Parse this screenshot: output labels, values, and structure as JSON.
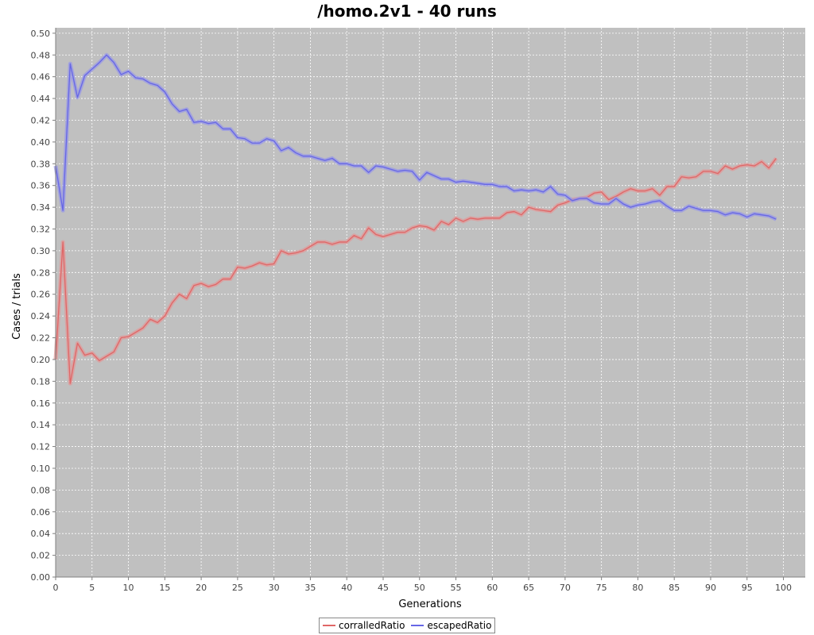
{
  "chart_data": {
    "type": "line",
    "title": "/homo.2v1 - 40 runs",
    "xlabel": "Generations",
    "ylabel": "Cases / trials",
    "xlim": [
      0,
      103
    ],
    "ylim": [
      0.0,
      0.505
    ],
    "x_ticks": [
      0,
      5,
      10,
      15,
      20,
      25,
      30,
      35,
      40,
      45,
      50,
      55,
      60,
      65,
      70,
      75,
      80,
      85,
      90,
      95,
      100
    ],
    "y_ticks": [
      "0.00",
      "0.02",
      "0.04",
      "0.06",
      "0.08",
      "0.10",
      "0.12",
      "0.14",
      "0.16",
      "0.18",
      "0.20",
      "0.22",
      "0.24",
      "0.26",
      "0.28",
      "0.30",
      "0.32",
      "0.34",
      "0.36",
      "0.38",
      "0.40",
      "0.42",
      "0.44",
      "0.46",
      "0.48",
      "0.50"
    ],
    "grid": true,
    "background": "#c0c0c0",
    "legend_position": "bottom",
    "series": [
      {
        "name": "corralledRatio",
        "color": "#e06666",
        "band_color": "#e09a9a",
        "x_start": 0,
        "values": [
          0.2,
          0.308,
          0.178,
          0.215,
          0.204,
          0.206,
          0.199,
          0.203,
          0.207,
          0.22,
          0.221,
          0.225,
          0.229,
          0.237,
          0.234,
          0.24,
          0.252,
          0.26,
          0.256,
          0.268,
          0.27,
          0.267,
          0.269,
          0.274,
          0.274,
          0.285,
          0.284,
          0.286,
          0.289,
          0.287,
          0.288,
          0.3,
          0.297,
          0.298,
          0.3,
          0.304,
          0.308,
          0.308,
          0.306,
          0.308,
          0.308,
          0.314,
          0.311,
          0.321,
          0.315,
          0.313,
          0.315,
          0.317,
          0.317,
          0.321,
          0.323,
          0.322,
          0.319,
          0.327,
          0.324,
          0.33,
          0.327,
          0.33,
          0.329,
          0.33,
          0.33,
          0.33,
          0.335,
          0.336,
          0.333,
          0.34,
          0.338,
          0.337,
          0.336,
          0.342,
          0.344,
          0.347,
          0.348,
          0.349,
          0.353,
          0.354,
          0.347,
          0.35,
          0.354,
          0.357,
          0.355,
          0.355,
          0.357,
          0.351,
          0.359,
          0.359,
          0.368,
          0.367,
          0.368,
          0.373,
          0.373,
          0.371,
          0.378,
          0.375,
          0.378,
          0.379,
          0.378,
          0.382,
          0.376,
          0.385
        ]
      },
      {
        "name": "escapedRatio",
        "color": "#6666e6",
        "band_color": "#9a9ae6",
        "x_start": 0,
        "values": [
          0.378,
          0.337,
          0.472,
          0.441,
          0.461,
          0.467,
          0.473,
          0.48,
          0.473,
          0.462,
          0.465,
          0.459,
          0.458,
          0.454,
          0.452,
          0.446,
          0.435,
          0.428,
          0.43,
          0.418,
          0.419,
          0.417,
          0.418,
          0.412,
          0.412,
          0.404,
          0.403,
          0.399,
          0.399,
          0.403,
          0.401,
          0.392,
          0.395,
          0.39,
          0.387,
          0.387,
          0.385,
          0.383,
          0.385,
          0.38,
          0.38,
          0.378,
          0.378,
          0.372,
          0.378,
          0.377,
          0.375,
          0.373,
          0.374,
          0.373,
          0.365,
          0.372,
          0.369,
          0.366,
          0.366,
          0.363,
          0.364,
          0.363,
          0.362,
          0.361,
          0.361,
          0.359,
          0.359,
          0.355,
          0.356,
          0.355,
          0.356,
          0.354,
          0.359,
          0.352,
          0.351,
          0.346,
          0.348,
          0.348,
          0.344,
          0.343,
          0.343,
          0.348,
          0.343,
          0.34,
          0.342,
          0.343,
          0.345,
          0.346,
          0.341,
          0.337,
          0.337,
          0.341,
          0.339,
          0.337,
          0.337,
          0.336,
          0.333,
          0.335,
          0.334,
          0.331,
          0.334,
          0.333,
          0.332,
          0.329
        ]
      }
    ]
  }
}
